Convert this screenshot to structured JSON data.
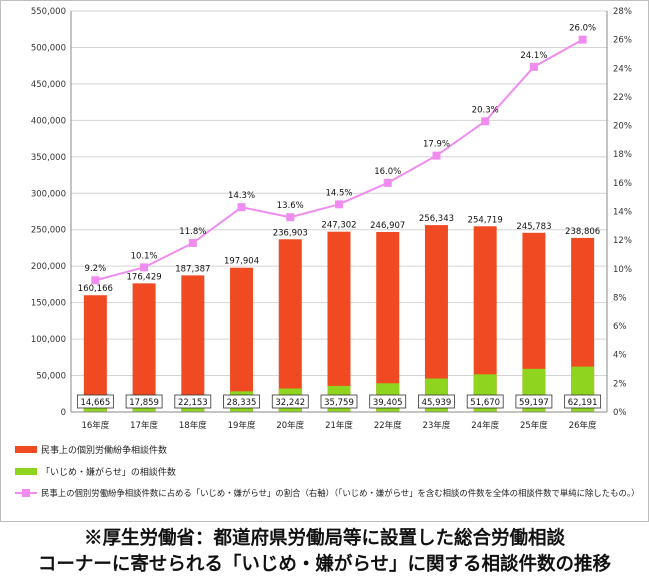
{
  "chart_data": {
    "type": "bar",
    "categories": [
      "16年度",
      "17年度",
      "18年度",
      "19年度",
      "20年度",
      "21年度",
      "22年度",
      "23年度",
      "24年度",
      "25年度",
      "26年度"
    ],
    "series": [
      {
        "name": "民事上の個別労働紛争相談件数",
        "kind": "bar",
        "color": "#f04a22",
        "values": [
          160166,
          176429,
          187387,
          197904,
          236903,
          247302,
          246907,
          256343,
          254719,
          245783,
          238806
        ],
        "labels": [
          "160,166",
          "176,429",
          "187,387",
          "197,904",
          "236,903",
          "247,302",
          "246,907",
          "256,343",
          "254,719",
          "245,783",
          "238,806"
        ]
      },
      {
        "name": "「いじめ・嫌がらせ」の相談件数",
        "kind": "bar",
        "color": "#8fd520",
        "values": [
          14665,
          17859,
          22153,
          28335,
          32242,
          35759,
          39405,
          45939,
          51670,
          59197,
          62191
        ],
        "labels": [
          "14,665",
          "17,859",
          "22,153",
          "28,335",
          "32,242",
          "35,759",
          "39,405",
          "45,939",
          "51,670",
          "59,197",
          "62,191"
        ]
      },
      {
        "name": "民事上の個別労働紛争相談件数に占める「いじめ・嫌がらせ」の割合（右軸）（「いじめ・嫌がらせ」を含む相談の件数を全体の相談件数で単純に除したもの。）",
        "kind": "line",
        "axis": "right",
        "color": "#f08cf0",
        "values": [
          9.2,
          10.1,
          11.8,
          14.3,
          13.6,
          14.5,
          16.0,
          17.9,
          20.3,
          24.1,
          26.0
        ],
        "labels": [
          "9.2%",
          "10.1%",
          "11.8%",
          "14.3%",
          "13.6%",
          "14.5%",
          "16.0%",
          "17.9%",
          "20.3%",
          "24.1%",
          "26.0%"
        ]
      }
    ],
    "y_left": {
      "min": 0,
      "max": 550000,
      "ticks": [
        0,
        50000,
        100000,
        150000,
        200000,
        250000,
        300000,
        350000,
        400000,
        450000,
        500000,
        550000
      ],
      "tick_labels": [
        "0",
        "50,000",
        "100,000",
        "150,000",
        "200,000",
        "250,000",
        "300,000",
        "350,000",
        "400,000",
        "450,000",
        "500,000",
        "550,000"
      ]
    },
    "y_right": {
      "min": 0,
      "max": 28,
      "ticks": [
        0,
        2,
        4,
        6,
        8,
        10,
        12,
        14,
        16,
        18,
        20,
        22,
        24,
        26,
        28
      ],
      "tick_labels": [
        "0%",
        "2%",
        "4%",
        "6%",
        "8%",
        "10%",
        "12%",
        "14%",
        "16%",
        "18%",
        "20%",
        "22%",
        "24%",
        "26%",
        "28%"
      ]
    },
    "legend": [
      "民事上の個別労働紛争相談件数",
      "「いじめ・嫌がらせ」の相談件数",
      "民事上の個別労働紛争相談件数に占める「いじめ・嫌がらせ」の割合（右軸）（「いじめ・嫌がらせ」を含む相談の件数を全体の相談件数で単純に除したもの。）"
    ],
    "legend_position": "bottom-left",
    "grid": true
  },
  "caption": {
    "line1": "※厚生労働省：都道府県労働局等に設置した総合労働相談",
    "line2": "コーナーに寄せられる「いじめ・嫌がらせ」に関する相談件数の推移"
  }
}
